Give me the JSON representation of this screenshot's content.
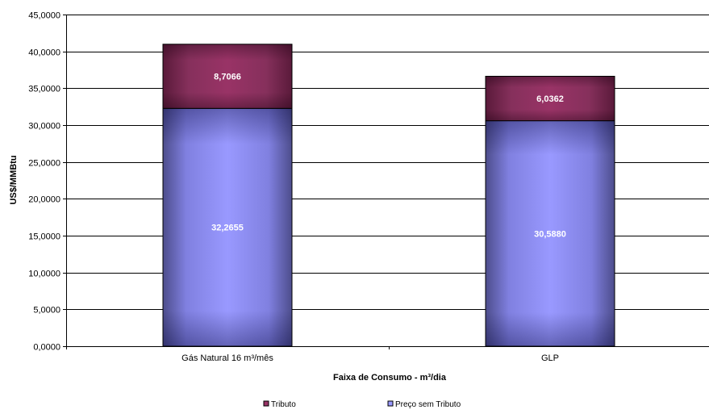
{
  "chart_data": {
    "type": "bar",
    "stacked": true,
    "categories": [
      "Gás Natural 16 m³/mês",
      "GLP"
    ],
    "series": [
      {
        "name": "Preço sem Tributo",
        "values": [
          32.2655,
          30.588
        ],
        "labels": [
          "32,2655",
          "30,5880"
        ],
        "color": "#9999ff"
      },
      {
        "name": "Tributo",
        "values": [
          8.7066,
          6.0362
        ],
        "labels": [
          "8,7066",
          "6,0362"
        ],
        "color": "#993366"
      }
    ],
    "title": "",
    "xlabel": "Faixa de Consumo - m³/dia",
    "ylabel": "US$/MMBtu",
    "ylim": [
      0,
      45
    ],
    "yticks": [
      0,
      5,
      10,
      15,
      20,
      25,
      30,
      35,
      40,
      45
    ],
    "ytick_labels": [
      "0,0000",
      "5,0000",
      "10,0000",
      "15,0000",
      "20,0000",
      "25,0000",
      "30,0000",
      "35,0000",
      "40,0000",
      "45,0000"
    ],
    "grid": true,
    "legend_position": "bottom",
    "legend_order": [
      "Tributo",
      "Preço sem Tributo"
    ]
  }
}
